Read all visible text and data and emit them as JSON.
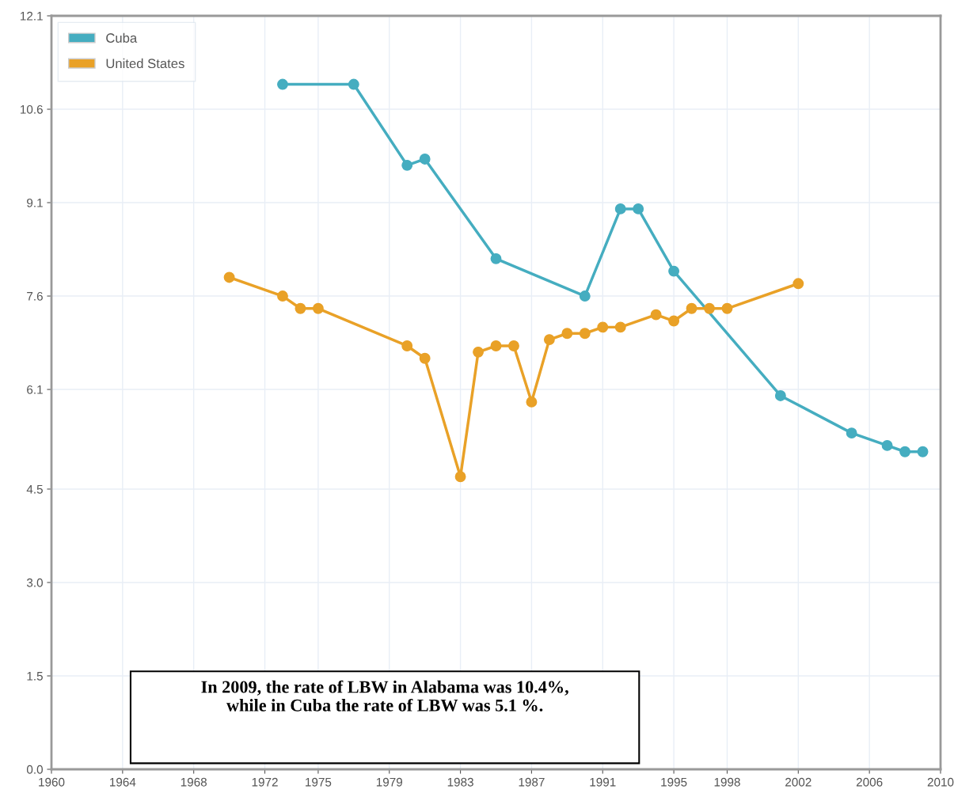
{
  "chart_data": {
    "type": "line",
    "series": [
      {
        "name": "Cuba",
        "color": "#45adc0",
        "x": [
          1973,
          1977,
          1980,
          1981,
          1985,
          1990,
          1992,
          1993,
          1995,
          2001,
          2005,
          2007,
          2008,
          2009
        ],
        "values": [
          11.0,
          11.0,
          9.7,
          9.8,
          8.2,
          7.6,
          9.0,
          9.0,
          8.0,
          6.0,
          5.4,
          5.2,
          5.1,
          5.1
        ]
      },
      {
        "name": "United States",
        "color": "#e9a127",
        "x": [
          1970,
          1973,
          1974,
          1975,
          1980,
          1981,
          1983,
          1984,
          1985,
          1986,
          1987,
          1988,
          1989,
          1990,
          1991,
          1992,
          1994,
          1995,
          1996,
          1997,
          1998,
          2002
        ],
        "values": [
          7.9,
          7.6,
          7.4,
          7.4,
          6.8,
          6.6,
          4.7,
          6.7,
          6.8,
          6.8,
          5.9,
          6.9,
          7.0,
          7.0,
          7.1,
          7.1,
          7.3,
          7.2,
          7.4,
          7.4,
          7.4,
          7.8
        ]
      }
    ],
    "xlim": [
      1960,
      2010
    ],
    "xticks": [
      1960,
      1964,
      1968,
      1972,
      1975,
      1979,
      1983,
      1987,
      1991,
      1995,
      1998,
      2002,
      2006,
      2010
    ],
    "ylim": [
      0,
      12.1
    ],
    "yticks": [
      {
        "value": 0,
        "label": "0.0"
      },
      1.5,
      {
        "value": 3,
        "label": "3.0"
      },
      4.5,
      6.1,
      7.6,
      9.1,
      10.6,
      12.1
    ],
    "grid": true,
    "legend": "top left",
    "marker": "circle",
    "line_style": "solid",
    "annotations": [
      "In 2009, the rate of LBW in Alabama was 10.4%,\nwhile in Cuba the rate of LBW was 5.1 %."
    ]
  }
}
